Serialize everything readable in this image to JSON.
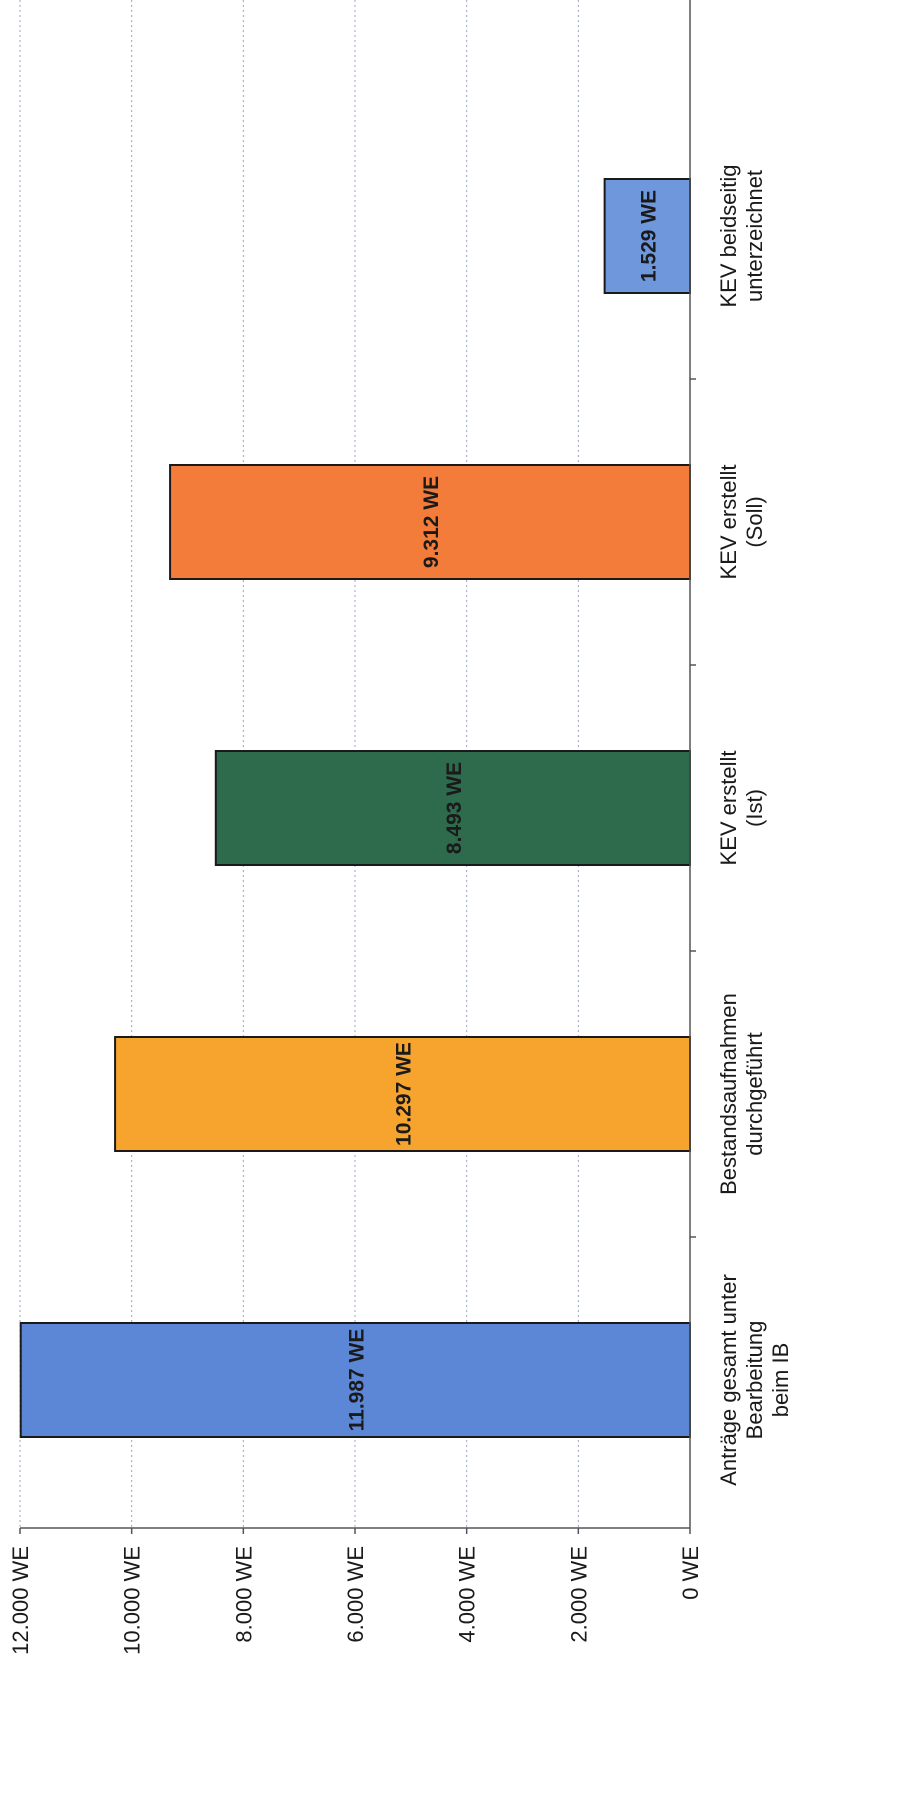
{
  "chart_data": {
    "type": "bar",
    "orientation": "vertical bars, page rotated 90° counter-clockwise",
    "categories": [
      [
        "Anträge gesamt unter",
        "Bearbeitung",
        "beim IB"
      ],
      [
        "Bestandsaufnahmen",
        "durchgeführt"
      ],
      [
        "KEV erstellt",
        "(Ist)"
      ],
      [
        "KEV erstellt",
        "(Soll)"
      ],
      [
        "KEV beidseitig",
        "unterzeichnet"
      ]
    ],
    "values": [
      11987,
      10297,
      8493,
      9312,
      1529
    ],
    "data_labels": [
      "11.987 WE",
      "10.297 WE",
      "8.493 WE",
      "9.312 WE",
      "1.529 WE"
    ],
    "colors": [
      "#5b87d6",
      "#f7a42f",
      "#2e6a4c",
      "#f47c3a",
      "#6f97dc"
    ],
    "ylim": [
      0,
      12000
    ],
    "ticks": [
      0,
      2000,
      4000,
      6000,
      8000,
      10000,
      12000
    ],
    "tick_labels": [
      "0 WE",
      "2.000 WE",
      "4.000 WE",
      "6.000 WE",
      "8.000 WE",
      "10.000 WE",
      "12.000 WE"
    ],
    "grid": true,
    "legend": "none"
  }
}
